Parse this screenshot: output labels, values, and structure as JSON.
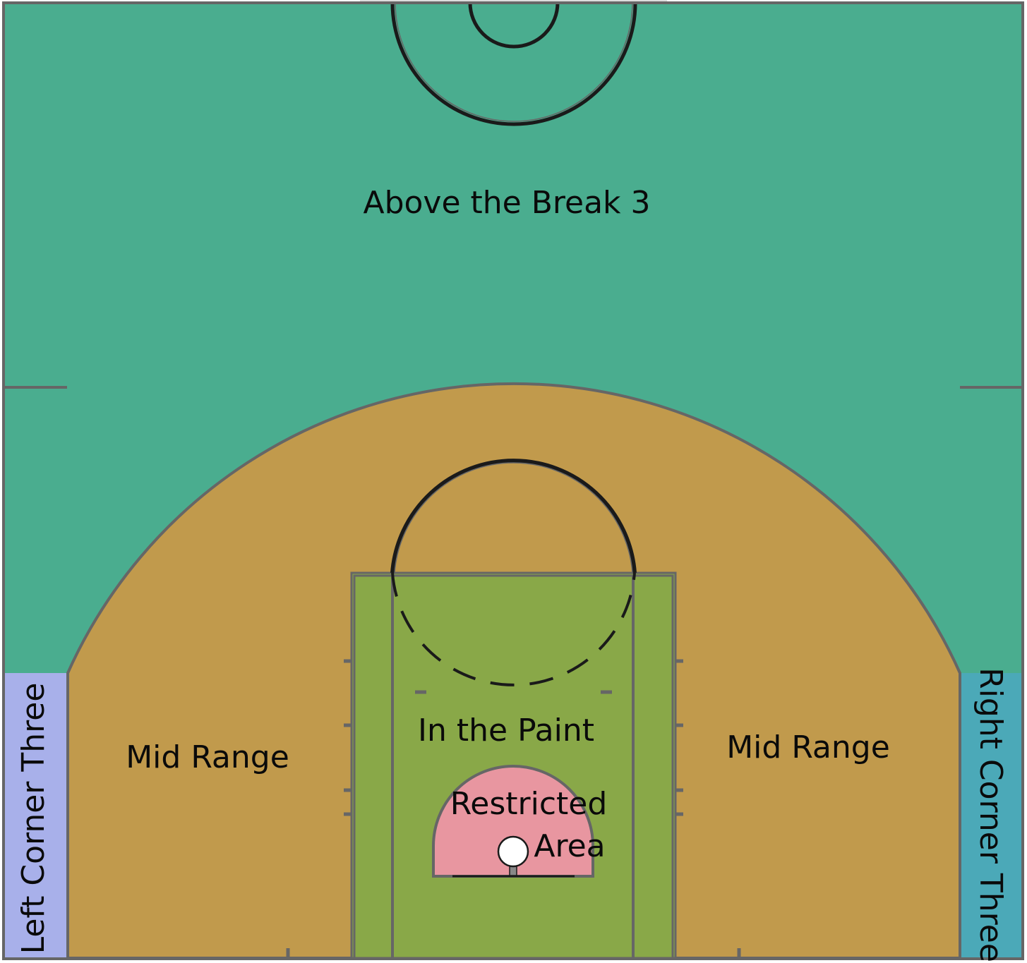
{
  "zones": {
    "above_break": {
      "label": "Above the Break 3",
      "color": "#4aad8f"
    },
    "mid_range": {
      "label": "Mid Range",
      "color": "#c19a4c"
    },
    "paint": {
      "label": "In the Paint",
      "color": "#89a848"
    },
    "restricted": {
      "label_line1": "Restricted",
      "label_line2": "Area",
      "color": "#e896a0"
    },
    "left_corner": {
      "label": "Left Corner Three",
      "color": "#a8b0ea"
    },
    "right_corner": {
      "label": "Right Corner Three",
      "color": "#4ba9b8"
    }
  },
  "colors": {
    "line": "#666666",
    "dark_line": "#1a1a1a",
    "rim": "#ffffff"
  }
}
